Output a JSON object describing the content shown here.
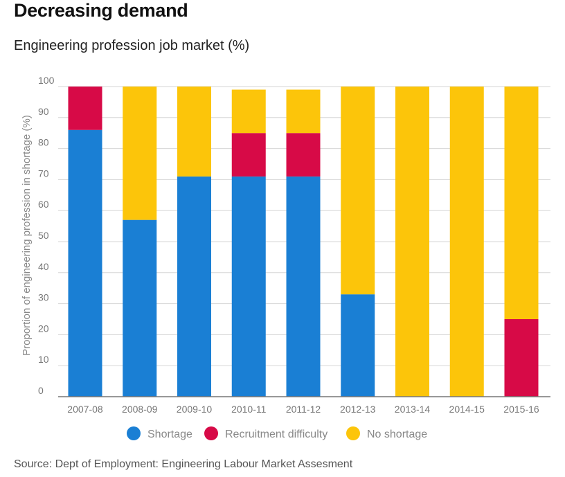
{
  "title": "Decreasing demand",
  "subtitle": "Engineering profession job market (%)",
  "source": "Source: Dept of Employment: Engineering Labour Market Assesment",
  "chart_data": {
    "type": "bar",
    "stacked": true,
    "categories": [
      "2007-08",
      "2008-09",
      "2009-10",
      "2010-11",
      "2011-12",
      "2012-13",
      "2013-14",
      "2014-15",
      "2015-16"
    ],
    "series": [
      {
        "name": "Shortage",
        "color": "#1a7fd4",
        "values": [
          86,
          57,
          71,
          71,
          71,
          33,
          0,
          0,
          0
        ]
      },
      {
        "name": "Recruitment difficulty",
        "color": "#d70a47",
        "values": [
          14,
          0,
          0,
          14,
          14,
          0,
          0,
          0,
          25
        ]
      },
      {
        "name": "No shortage",
        "color": "#fcc50a",
        "values": [
          0,
          43,
          29,
          14,
          14,
          67,
          100,
          100,
          75
        ]
      }
    ],
    "ylabel": "Proportion of engineering profession in shortage (%)",
    "xlabel": "",
    "ylim": [
      0,
      100
    ],
    "yticks": [
      0,
      10,
      20,
      30,
      40,
      50,
      60,
      70,
      80,
      90,
      100
    ],
    "grid": true,
    "legend_position": "bottom"
  }
}
